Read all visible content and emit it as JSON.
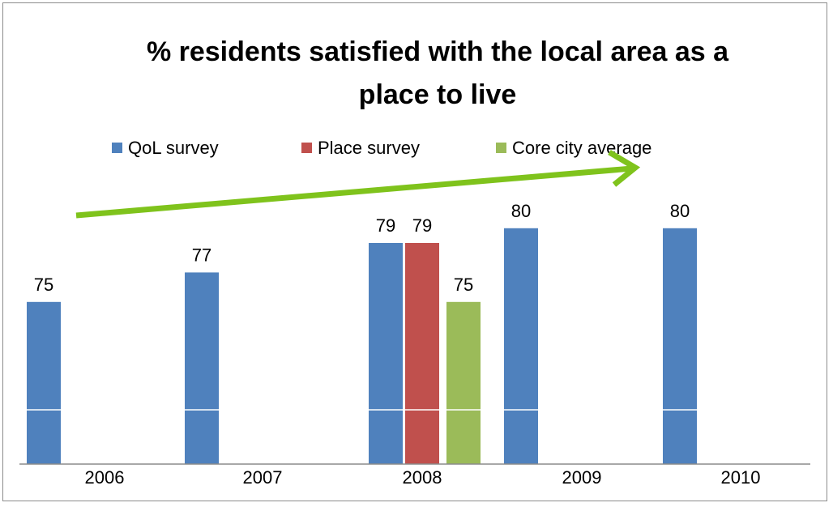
{
  "chart_data": {
    "type": "bar",
    "title": "% residents satisfied with the local area as a place to live",
    "title_lines": [
      "% residents satisfied with the local area as a",
      "place to live"
    ],
    "categories": [
      "2006",
      "2007",
      "2008",
      "2009",
      "2010"
    ],
    "series": [
      {
        "name": "QoL survey",
        "color": "#4f81bd",
        "values": [
          75,
          77,
          79,
          80,
          80
        ]
      },
      {
        "name": "Place survey",
        "color": "#c0504d",
        "values": [
          null,
          null,
          79,
          null,
          null
        ]
      },
      {
        "name": "Core city average",
        "color": "#9bbb59",
        "values": [
          null,
          null,
          75,
          null,
          null
        ]
      }
    ],
    "ylim": [
      64,
      82
    ],
    "grid": false,
    "legend_position": "top",
    "annotation": {
      "type": "trend-arrow",
      "color": "#7fc31c"
    }
  }
}
